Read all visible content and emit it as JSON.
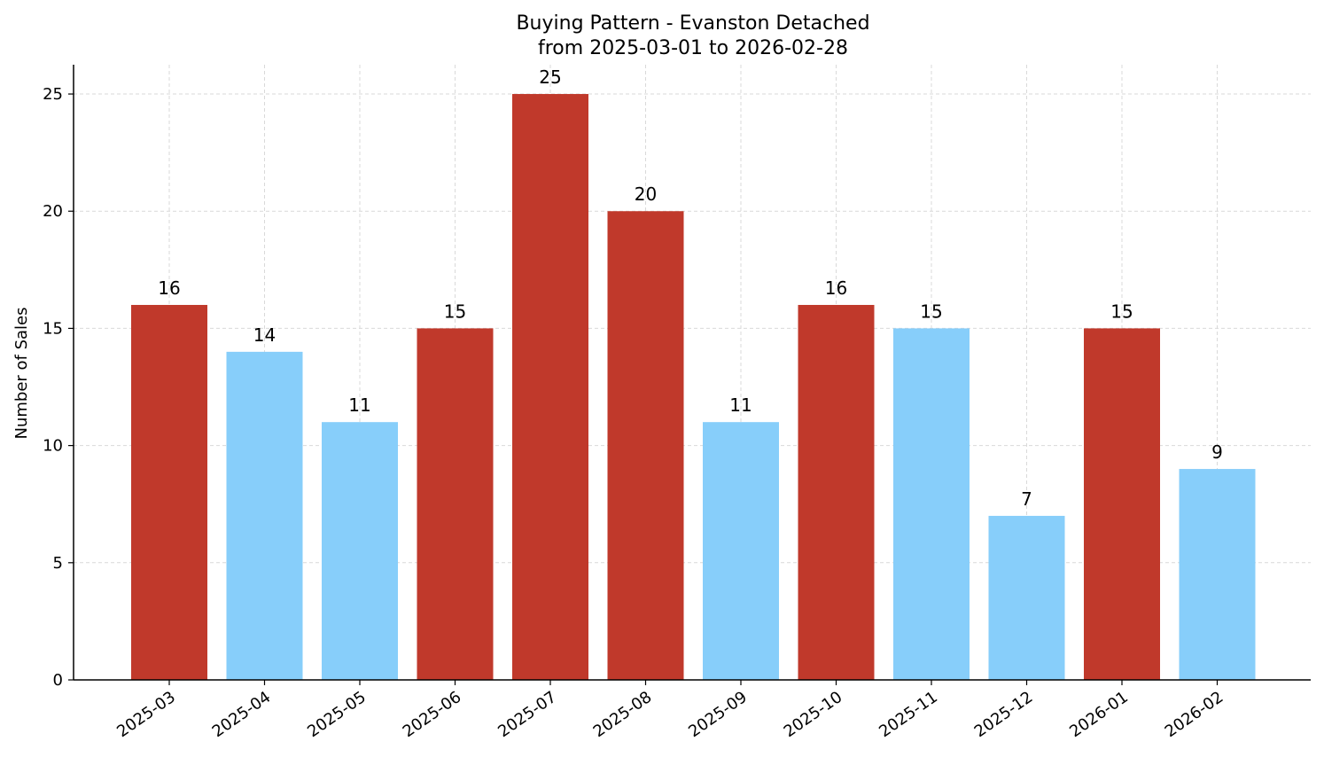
{
  "chart_data": {
    "type": "bar",
    "title": "Buying Pattern - Evanston Detached",
    "subtitle": "from 2025-03-01 to 2026-02-28",
    "xlabel": "",
    "ylabel": "Number of Sales",
    "ylim": [
      0,
      26.25
    ],
    "yticks": [
      0,
      5,
      10,
      15,
      20,
      25
    ],
    "grid": true,
    "categories": [
      "2025-03",
      "2025-04",
      "2025-05",
      "2025-06",
      "2025-07",
      "2025-08",
      "2025-09",
      "2025-10",
      "2025-11",
      "2025-12",
      "2026-01",
      "2026-02"
    ],
    "values": [
      16,
      14,
      11,
      15,
      25,
      20,
      11,
      16,
      15,
      7,
      15,
      9
    ],
    "bar_colors": [
      "#c0392b",
      "#87cefa",
      "#87cefa",
      "#c0392b",
      "#c0392b",
      "#c0392b",
      "#87cefa",
      "#c0392b",
      "#87cefa",
      "#87cefa",
      "#c0392b",
      "#87cefa"
    ]
  }
}
